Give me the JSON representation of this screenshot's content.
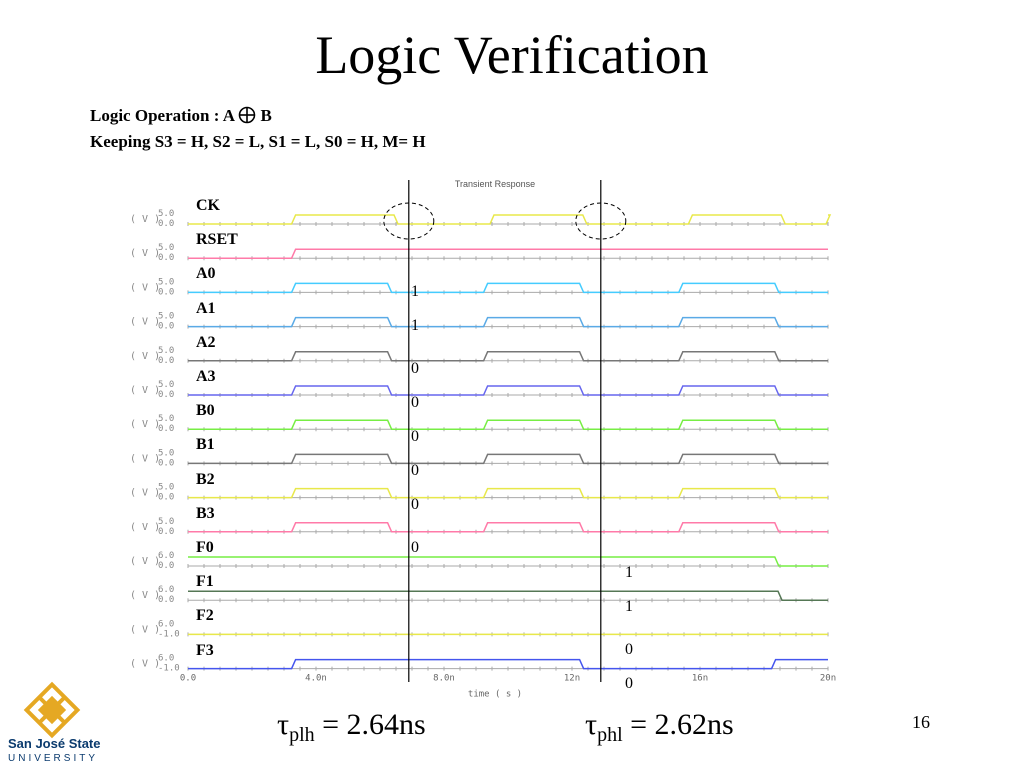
{
  "title": "Logic Verification",
  "subtitle": {
    "operation_label": "Logic Operation",
    "operation_colon": ": A",
    "operation_b": "B",
    "keeping": "Keeping S3 = H, S2 = L, S1 = L, S0 = H, M= H"
  },
  "chart_data": {
    "type": "line",
    "title": "Transient Response",
    "xlabel": "time ( s )",
    "x_ticks": [
      "0.0",
      "4.0n",
      "8.0n",
      "12n",
      "16n",
      "20n"
    ],
    "xlim": [
      0,
      20
    ],
    "x_unit": "ns",
    "y_axis_label": "( V )",
    "cursor_times_ns": [
      6.9,
      12.9
    ],
    "series": [
      {
        "name": "CK",
        "color": "#e8e84a",
        "ytop": "5.0",
        "ybot": "0.0",
        "transitions": [
          0.0,
          3.3,
          6.5,
          9.5,
          12.4,
          15.7,
          18.6,
          20.0
        ],
        "start": 1
      },
      {
        "name": "RSET",
        "color": "#ff7aa8",
        "ytop": "5.0",
        "ybot": "0.0",
        "transitions": [
          0.0,
          3.3
        ],
        "start": 1
      },
      {
        "name": "A0",
        "color": "#44ccff",
        "ytop": "5.0",
        "ybot": "0.0",
        "transitions": [
          3.3,
          6.3,
          9.3,
          12.3,
          15.4,
          18.4
        ],
        "start": 0
      },
      {
        "name": "A1",
        "color": "#5aaae6",
        "ytop": "5.0",
        "ybot": "0.0",
        "transitions": [
          3.3,
          6.3,
          9.3,
          12.3,
          15.4,
          18.4
        ],
        "start": 0
      },
      {
        "name": "A2",
        "color": "#777777",
        "ytop": "5.0",
        "ybot": "0.0",
        "transitions": [
          3.3,
          6.3,
          9.3,
          12.3,
          15.4,
          18.4
        ],
        "start": 0
      },
      {
        "name": "A3",
        "color": "#6666ee",
        "ytop": "5.0",
        "ybot": "0.0",
        "transitions": [
          3.3,
          6.3,
          9.3,
          12.3,
          15.4,
          18.4
        ],
        "start": 0
      },
      {
        "name": "B0",
        "color": "#77ee44",
        "ytop": "5.0",
        "ybot": "0.0",
        "transitions": [
          3.3,
          6.3,
          9.3,
          12.3,
          15.4,
          18.4
        ],
        "start": 0
      },
      {
        "name": "B1",
        "color": "#777777",
        "ytop": "5.0",
        "ybot": "0.0",
        "transitions": [
          3.3,
          6.3,
          9.3,
          12.3,
          15.4,
          18.4
        ],
        "start": 0
      },
      {
        "name": "B2",
        "color": "#e8e84a",
        "ytop": "5.0",
        "ybot": "0.0",
        "transitions": [
          3.3,
          6.3,
          9.3,
          12.3,
          15.4,
          18.4
        ],
        "start": 0
      },
      {
        "name": "B3",
        "color": "#ff7aa8",
        "ytop": "5.0",
        "ybot": "0.0",
        "transitions": [
          3.3,
          6.3,
          9.3,
          12.3,
          15.4,
          18.4
        ],
        "start": 0
      },
      {
        "name": "F0",
        "color": "#77ee44",
        "ytop": "6.0",
        "ybot": "0.0",
        "transitions": [
          18.4
        ],
        "start": 1
      },
      {
        "name": "F1",
        "color": "#557755",
        "ytop": "6.0",
        "ybot": "0.0",
        "transitions": [
          18.5
        ],
        "start": 1
      },
      {
        "name": "F2",
        "color": "#e8e84a",
        "ytop": "6.0",
        "ybot": "-1.0",
        "transitions": [],
        "start": 0
      },
      {
        "name": "F3",
        "color": "#4455ee",
        "ytop": "6.0",
        "ybot": "-1.0",
        "transitions": [
          3.3,
          12.3,
          18.3
        ],
        "start": 0
      }
    ]
  },
  "annotations_left": [
    "1",
    "1",
    "0",
    "0",
    "0",
    "0",
    "0",
    "0"
  ],
  "annotations_right": [
    "1",
    "1",
    "0",
    "0"
  ],
  "tau_plh": {
    "symbol": "τ",
    "sub": "plh",
    "value": " = 2.64ns"
  },
  "tau_phl": {
    "symbol": "τ",
    "sub": "phl",
    "value": " = 2.62ns"
  },
  "page_number": "16",
  "logo": {
    "line1": "San José State",
    "line2": "UNIVERSITY",
    "colors": {
      "gold": "#e5a823",
      "blue": "#0b3b6e"
    }
  }
}
